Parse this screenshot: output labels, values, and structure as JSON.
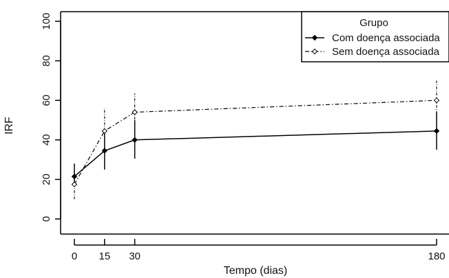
{
  "chart_data": {
    "type": "line",
    "xlabel": "Tempo (dias)",
    "ylabel": "IRF",
    "x": [
      0,
      15,
      30,
      180
    ],
    "xticks": [
      "0",
      "15",
      "30",
      "180"
    ],
    "yticks": [
      "0",
      "20",
      "40",
      "60",
      "80",
      "100"
    ],
    "xlim": [
      -5,
      185
    ],
    "ylim": [
      0,
      100
    ],
    "legend_title": "Grupo",
    "legend_position": "top-right",
    "series": [
      {
        "name": "Com doença associada",
        "marker": "filled-diamond",
        "line_style": "solid",
        "values": [
          21.5,
          34.5,
          40,
          44.5
        ],
        "error_low": [
          17,
          25,
          30.5,
          35
        ],
        "error_high": [
          28,
          44,
          50,
          54
        ]
      },
      {
        "name": "Sem doença associada",
        "marker": "open-diamond",
        "line_style": "dashdot",
        "values": [
          17.5,
          44.5,
          54,
          60
        ],
        "error_low": [
          10,
          35,
          44,
          50
        ],
        "error_high": [
          24,
          56,
          63.5,
          70
        ]
      }
    ],
    "grid": false,
    "colors": {
      "line": "#000000",
      "background": "#ffffff"
    }
  }
}
